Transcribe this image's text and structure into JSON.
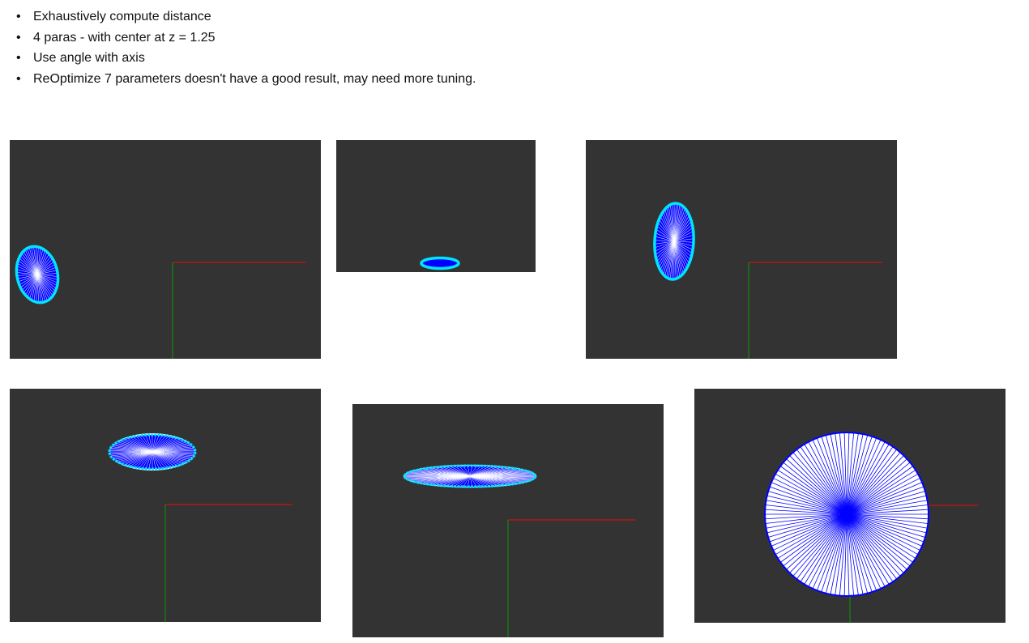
{
  "bullets": [
    "Exhaustively compute distance",
    "4 paras - with center at z = 1.25",
    "Use angle with axis",
    "ReOptimize 7 parameters doesn't have a good result, may need more tuning."
  ],
  "panels": [
    {
      "name": "viewer-1",
      "shape": "tilted-ellipse-left"
    },
    {
      "name": "viewer-2",
      "shape": "flat-ring"
    },
    {
      "name": "viewer-3",
      "shape": "tilted-ellipse-center"
    },
    {
      "name": "viewer-4",
      "shape": "top-ellipse"
    },
    {
      "name": "viewer-5",
      "shape": "flat-disc"
    },
    {
      "name": "viewer-6",
      "shape": "circle-front"
    }
  ],
  "colors": {
    "viewport_bg": "#333333",
    "x_axis": "#cc1111",
    "y_axis": "#118811",
    "disc_fill": "#0000ff",
    "disc_rim": "#00e5ff",
    "spoke": "#ffffff"
  }
}
